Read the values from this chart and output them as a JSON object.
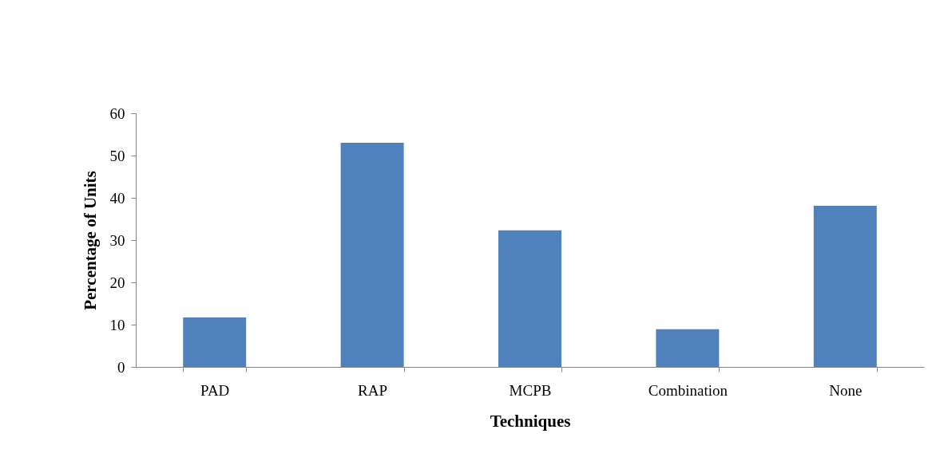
{
  "chart_data": {
    "type": "bar",
    "xlabel": "Techniques",
    "ylabel": "Percentage of Units",
    "categories": [
      "PAD",
      "RAP",
      "MCPB",
      "Combination",
      "None"
    ],
    "values": [
      11.7,
      53.0,
      32.3,
      8.9,
      38.1
    ],
    "color": "#4f81bd",
    "ylim": [
      0,
      60
    ],
    "yticks": [
      0,
      10,
      20,
      30,
      40,
      50,
      60
    ],
    "grid": false,
    "legend": false
  }
}
